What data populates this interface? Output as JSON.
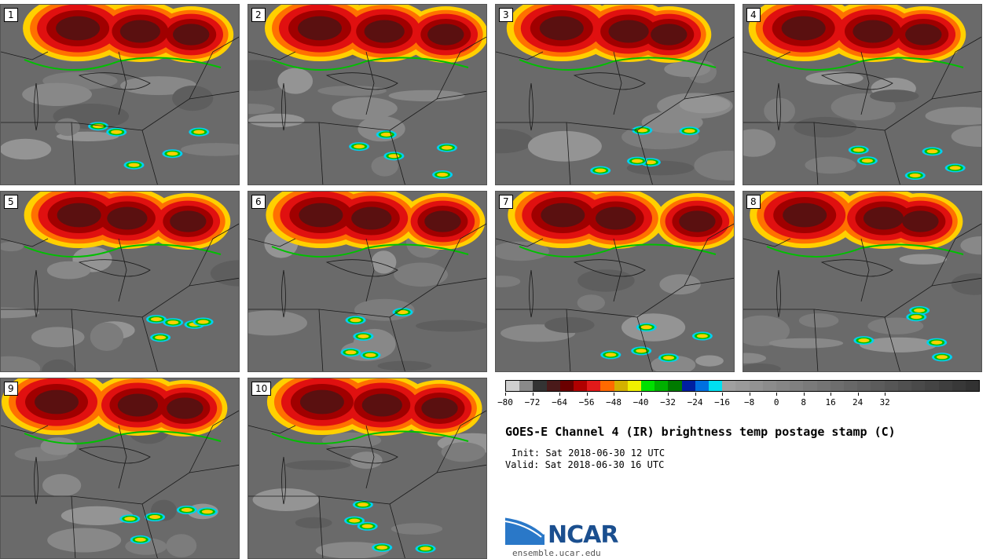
{
  "panels": [
    {
      "label": "1"
    },
    {
      "label": "2"
    },
    {
      "label": "3"
    },
    {
      "label": "4"
    },
    {
      "label": "5"
    },
    {
      "label": "6"
    },
    {
      "label": "7"
    },
    {
      "label": "8"
    },
    {
      "label": "9"
    },
    {
      "label": "10"
    }
  ],
  "colorbar": {
    "colors": [
      "#cfcfcf",
      "#8a8a8a",
      "#333333",
      "#4a1a1a",
      "#6b0000",
      "#b00000",
      "#e21a1a",
      "#ff6a00",
      "#d4b000",
      "#f0f000",
      "#00e000",
      "#00b000",
      "#007a00",
      "#0020a0",
      "#0070e0",
      "#00e0f0",
      "#a0a0a0",
      "#9a9a9a",
      "#939393",
      "#8c8c8c",
      "#868686",
      "#808080",
      "#7a7a7a",
      "#747474",
      "#6e6e6e",
      "#686868",
      "#626262",
      "#5c5c5c",
      "#565656",
      "#505050",
      "#4a4a4a",
      "#444444",
      "#3e3e3e",
      "#383838",
      "#323232"
    ],
    "tick_labels": [
      "−80",
      "−72",
      "−64",
      "−56",
      "−48",
      "−40",
      "−32",
      "−24",
      "−16",
      "−8",
      "0",
      "8",
      "16",
      "24",
      "32"
    ]
  },
  "title": "GOES-E Channel 4 (IR) brightness temp postage stamp (C)",
  "init": "Init: Sat 2018-06-30 12 UTC",
  "valid": "Valid: Sat 2018-06-30 16 UTC",
  "logo": {
    "text": "NCAR"
  },
  "website": "ensemble.ucar.edu"
}
